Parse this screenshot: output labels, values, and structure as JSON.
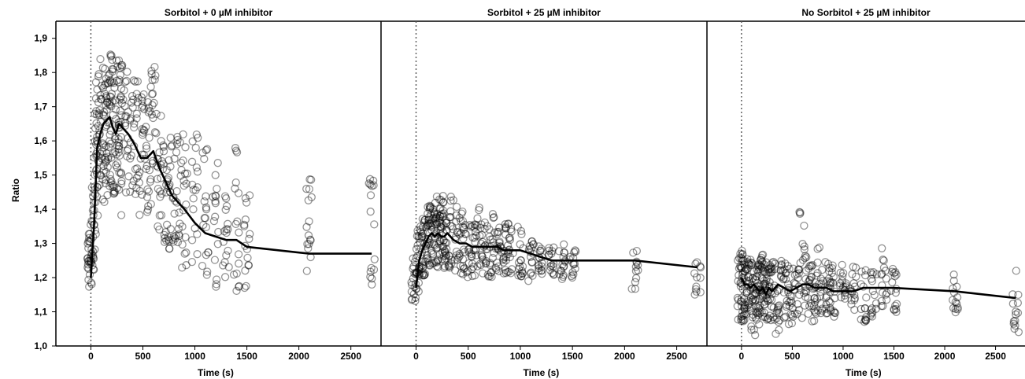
{
  "chart_data": {
    "type": "scatter",
    "ylabel": "Ratio",
    "xlabel": "Time (s)",
    "ylim": [
      1.0,
      1.95
    ],
    "xlim": [
      -185,
      2790
    ],
    "yticks": [
      1.0,
      1.1,
      1.2,
      1.3,
      1.4,
      1.5,
      1.6,
      1.7,
      1.8,
      1.9
    ],
    "ytick_labels": [
      "1,0",
      "1,1",
      "1,2",
      "1,3",
      "1,4",
      "1,5",
      "1,6",
      "1,7",
      "1,8",
      "1,9"
    ],
    "xticks": [
      0,
      500,
      1000,
      1500,
      2000,
      2500
    ],
    "xtick_labels": [
      "0",
      "500",
      "1000",
      "1500",
      "2000",
      "2500"
    ],
    "reference_line_x": 0,
    "panels": [
      {
        "title": "Sorbitol + 0 µM inhibitor",
        "mean_line": {
          "x": [
            0,
            30,
            60,
            90,
            120,
            150,
            180,
            210,
            240,
            270,
            300,
            360,
            420,
            480,
            540,
            600,
            660,
            720,
            780,
            840,
            900,
            1000,
            1100,
            1200,
            1300,
            1400,
            1500,
            2100,
            2700
          ],
          "y": [
            1.2,
            1.35,
            1.58,
            1.62,
            1.65,
            1.66,
            1.67,
            1.64,
            1.62,
            1.65,
            1.64,
            1.62,
            1.59,
            1.55,
            1.55,
            1.57,
            1.52,
            1.48,
            1.44,
            1.42,
            1.4,
            1.36,
            1.33,
            1.32,
            1.31,
            1.31,
            1.29,
            1.27,
            1.27
          ]
        },
        "scatter_groups": [
          {
            "x": -15,
            "y_min": 1.16,
            "y_max": 1.28,
            "n": 14
          },
          {
            "x": 0,
            "y_min": 1.18,
            "y_max": 1.36,
            "n": 18
          },
          {
            "x": 20,
            "y_min": 1.22,
            "y_max": 1.44,
            "n": 16
          },
          {
            "x": 40,
            "y_min": 1.35,
            "y_max": 1.72,
            "n": 18
          },
          {
            "x": 60,
            "y_min": 1.42,
            "y_max": 1.8,
            "n": 20
          },
          {
            "x": 90,
            "y_min": 1.45,
            "y_max": 1.84,
            "n": 20
          },
          {
            "x": 120,
            "y_min": 1.41,
            "y_max": 1.85,
            "n": 20
          },
          {
            "x": 150,
            "y_min": 1.45,
            "y_max": 1.86,
            "n": 20
          },
          {
            "x": 180,
            "y_min": 1.42,
            "y_max": 1.86,
            "n": 20
          },
          {
            "x": 210,
            "y_min": 1.44,
            "y_max": 1.84,
            "n": 20
          },
          {
            "x": 240,
            "y_min": 1.44,
            "y_max": 1.85,
            "n": 20
          },
          {
            "x": 270,
            "y_min": 1.45,
            "y_max": 1.85,
            "n": 20
          },
          {
            "x": 300,
            "y_min": 1.38,
            "y_max": 1.84,
            "n": 20
          },
          {
            "x": 360,
            "y_min": 1.42,
            "y_max": 1.84,
            "n": 20
          },
          {
            "x": 420,
            "y_min": 1.4,
            "y_max": 1.82,
            "n": 20
          },
          {
            "x": 480,
            "y_min": 1.38,
            "y_max": 1.74,
            "n": 20
          },
          {
            "x": 540,
            "y_min": 1.36,
            "y_max": 1.72,
            "n": 20
          },
          {
            "x": 600,
            "y_min": 1.38,
            "y_max": 1.83,
            "n": 20
          },
          {
            "x": 660,
            "y_min": 1.34,
            "y_max": 1.72,
            "n": 20
          },
          {
            "x": 720,
            "y_min": 1.3,
            "y_max": 1.62,
            "n": 20
          },
          {
            "x": 780,
            "y_min": 1.28,
            "y_max": 1.64,
            "n": 20
          },
          {
            "x": 840,
            "y_min": 1.25,
            "y_max": 1.62,
            "n": 18
          },
          {
            "x": 900,
            "y_min": 1.22,
            "y_max": 1.65,
            "n": 18
          },
          {
            "x": 1000,
            "y_min": 1.24,
            "y_max": 1.62,
            "n": 18
          },
          {
            "x": 1100,
            "y_min": 1.19,
            "y_max": 1.59,
            "n": 18
          },
          {
            "x": 1200,
            "y_min": 1.17,
            "y_max": 1.57,
            "n": 16
          },
          {
            "x": 1300,
            "y_min": 1.17,
            "y_max": 1.46,
            "n": 16
          },
          {
            "x": 1400,
            "y_min": 1.16,
            "y_max": 1.61,
            "n": 16
          },
          {
            "x": 1500,
            "y_min": 1.15,
            "y_max": 1.45,
            "n": 16
          },
          {
            "x": 2100,
            "y_min": 1.16,
            "y_max": 1.5,
            "n": 16
          },
          {
            "x": 2700,
            "y_min": 1.17,
            "y_max": 1.5,
            "n": 16
          }
        ]
      },
      {
        "title": "Sorbitol + 25 µM inhibitor",
        "mean_line": {
          "x": [
            0,
            30,
            60,
            90,
            120,
            150,
            180,
            210,
            240,
            270,
            300,
            360,
            420,
            480,
            540,
            600,
            660,
            720,
            780,
            840,
            900,
            1000,
            1100,
            1200,
            1300,
            1400,
            1500,
            2100,
            2700
          ],
          "y": [
            1.17,
            1.25,
            1.28,
            1.3,
            1.32,
            1.33,
            1.32,
            1.33,
            1.32,
            1.32,
            1.33,
            1.31,
            1.3,
            1.3,
            1.29,
            1.29,
            1.29,
            1.29,
            1.29,
            1.28,
            1.28,
            1.28,
            1.27,
            1.26,
            1.25,
            1.25,
            1.25,
            1.25,
            1.23
          ]
        },
        "scatter_groups": [
          {
            "x": -15,
            "y_min": 1.13,
            "y_max": 1.22,
            "n": 12
          },
          {
            "x": 0,
            "y_min": 1.15,
            "y_max": 1.27,
            "n": 14
          },
          {
            "x": 30,
            "y_min": 1.18,
            "y_max": 1.35,
            "n": 16
          },
          {
            "x": 60,
            "y_min": 1.2,
            "y_max": 1.38,
            "n": 18
          },
          {
            "x": 90,
            "y_min": 1.21,
            "y_max": 1.4,
            "n": 18
          },
          {
            "x": 120,
            "y_min": 1.22,
            "y_max": 1.41,
            "n": 18
          },
          {
            "x": 150,
            "y_min": 1.22,
            "y_max": 1.41,
            "n": 18
          },
          {
            "x": 180,
            "y_min": 1.22,
            "y_max": 1.42,
            "n": 18
          },
          {
            "x": 210,
            "y_min": 1.23,
            "y_max": 1.44,
            "n": 18
          },
          {
            "x": 240,
            "y_min": 1.23,
            "y_max": 1.44,
            "n": 18
          },
          {
            "x": 270,
            "y_min": 1.22,
            "y_max": 1.43,
            "n": 18
          },
          {
            "x": 300,
            "y_min": 1.21,
            "y_max": 1.38,
            "n": 18
          },
          {
            "x": 360,
            "y_min": 1.21,
            "y_max": 1.45,
            "n": 18
          },
          {
            "x": 420,
            "y_min": 1.2,
            "y_max": 1.4,
            "n": 18
          },
          {
            "x": 480,
            "y_min": 1.19,
            "y_max": 1.38,
            "n": 18
          },
          {
            "x": 540,
            "y_min": 1.2,
            "y_max": 1.36,
            "n": 18
          },
          {
            "x": 600,
            "y_min": 1.21,
            "y_max": 1.41,
            "n": 18
          },
          {
            "x": 660,
            "y_min": 1.2,
            "y_max": 1.37,
            "n": 18
          },
          {
            "x": 720,
            "y_min": 1.2,
            "y_max": 1.39,
            "n": 18
          },
          {
            "x": 780,
            "y_min": 1.2,
            "y_max": 1.36,
            "n": 18
          },
          {
            "x": 840,
            "y_min": 1.21,
            "y_max": 1.36,
            "n": 18
          },
          {
            "x": 900,
            "y_min": 1.2,
            "y_max": 1.36,
            "n": 18
          },
          {
            "x": 1000,
            "y_min": 1.2,
            "y_max": 1.35,
            "n": 18
          },
          {
            "x": 1100,
            "y_min": 1.19,
            "y_max": 1.32,
            "n": 16
          },
          {
            "x": 1200,
            "y_min": 1.21,
            "y_max": 1.3,
            "n": 16
          },
          {
            "x": 1300,
            "y_min": 1.2,
            "y_max": 1.29,
            "n": 16
          },
          {
            "x": 1400,
            "y_min": 1.19,
            "y_max": 1.3,
            "n": 16
          },
          {
            "x": 1500,
            "y_min": 1.2,
            "y_max": 1.3,
            "n": 14
          },
          {
            "x": 2100,
            "y_min": 1.16,
            "y_max": 1.28,
            "n": 12
          },
          {
            "x": 2700,
            "y_min": 1.15,
            "y_max": 1.26,
            "n": 12
          }
        ]
      },
      {
        "title": "No Sorbitol + 25 µM inhibitor",
        "mean_line": {
          "x": [
            0,
            30,
            60,
            90,
            120,
            150,
            180,
            210,
            240,
            270,
            300,
            360,
            420,
            480,
            540,
            600,
            660,
            720,
            780,
            840,
            900,
            1000,
            1100,
            1200,
            1300,
            1400,
            1500,
            2100,
            2700
          ],
          "y": [
            1.2,
            1.18,
            1.18,
            1.17,
            1.18,
            1.17,
            1.16,
            1.17,
            1.15,
            1.17,
            1.16,
            1.18,
            1.17,
            1.16,
            1.17,
            1.18,
            1.18,
            1.17,
            1.17,
            1.17,
            1.16,
            1.16,
            1.16,
            1.17,
            1.17,
            1.17,
            1.17,
            1.16,
            1.14
          ]
        },
        "scatter_groups": [
          {
            "x": -15,
            "y_min": 1.06,
            "y_max": 1.29,
            "n": 18
          },
          {
            "x": 0,
            "y_min": 1.07,
            "y_max": 1.28,
            "n": 18
          },
          {
            "x": 30,
            "y_min": 1.06,
            "y_max": 1.27,
            "n": 18
          },
          {
            "x": 60,
            "y_min": 1.08,
            "y_max": 1.26,
            "n": 18
          },
          {
            "x": 90,
            "y_min": 1.07,
            "y_max": 1.25,
            "n": 18
          },
          {
            "x": 120,
            "y_min": 1.03,
            "y_max": 1.23,
            "n": 18
          },
          {
            "x": 150,
            "y_min": 1.08,
            "y_max": 1.23,
            "n": 18
          },
          {
            "x": 180,
            "y_min": 1.05,
            "y_max": 1.24,
            "n": 18
          },
          {
            "x": 210,
            "y_min": 1.08,
            "y_max": 1.27,
            "n": 18
          },
          {
            "x": 240,
            "y_min": 1.06,
            "y_max": 1.25,
            "n": 18
          },
          {
            "x": 270,
            "y_min": 1.07,
            "y_max": 1.25,
            "n": 18
          },
          {
            "x": 300,
            "y_min": 1.07,
            "y_max": 1.25,
            "n": 18
          },
          {
            "x": 360,
            "y_min": 1.02,
            "y_max": 1.23,
            "n": 18
          },
          {
            "x": 420,
            "y_min": 1.08,
            "y_max": 1.25,
            "n": 18
          },
          {
            "x": 480,
            "y_min": 1.06,
            "y_max": 1.24,
            "n": 18
          },
          {
            "x": 540,
            "y_min": 1.09,
            "y_max": 1.23,
            "n": 18
          },
          {
            "x": 600,
            "y_min": 1.08,
            "y_max": 1.4,
            "n": 18
          },
          {
            "x": 660,
            "y_min": 1.08,
            "y_max": 1.26,
            "n": 18
          },
          {
            "x": 720,
            "y_min": 1.07,
            "y_max": 1.24,
            "n": 18
          },
          {
            "x": 780,
            "y_min": 1.09,
            "y_max": 1.3,
            "n": 18
          },
          {
            "x": 840,
            "y_min": 1.08,
            "y_max": 1.25,
            "n": 18
          },
          {
            "x": 900,
            "y_min": 1.07,
            "y_max": 1.24,
            "n": 18
          },
          {
            "x": 1000,
            "y_min": 1.1,
            "y_max": 1.24,
            "n": 18
          },
          {
            "x": 1100,
            "y_min": 1.09,
            "y_max": 1.24,
            "n": 16
          },
          {
            "x": 1200,
            "y_min": 1.07,
            "y_max": 1.23,
            "n": 16
          },
          {
            "x": 1300,
            "y_min": 1.08,
            "y_max": 1.23,
            "n": 16
          },
          {
            "x": 1400,
            "y_min": 1.1,
            "y_max": 1.29,
            "n": 16
          },
          {
            "x": 1500,
            "y_min": 1.08,
            "y_max": 1.23,
            "n": 16
          },
          {
            "x": 2100,
            "y_min": 1.09,
            "y_max": 1.23,
            "n": 14
          },
          {
            "x": 2700,
            "y_min": 1.03,
            "y_max": 1.23,
            "n": 14
          }
        ]
      }
    ]
  }
}
